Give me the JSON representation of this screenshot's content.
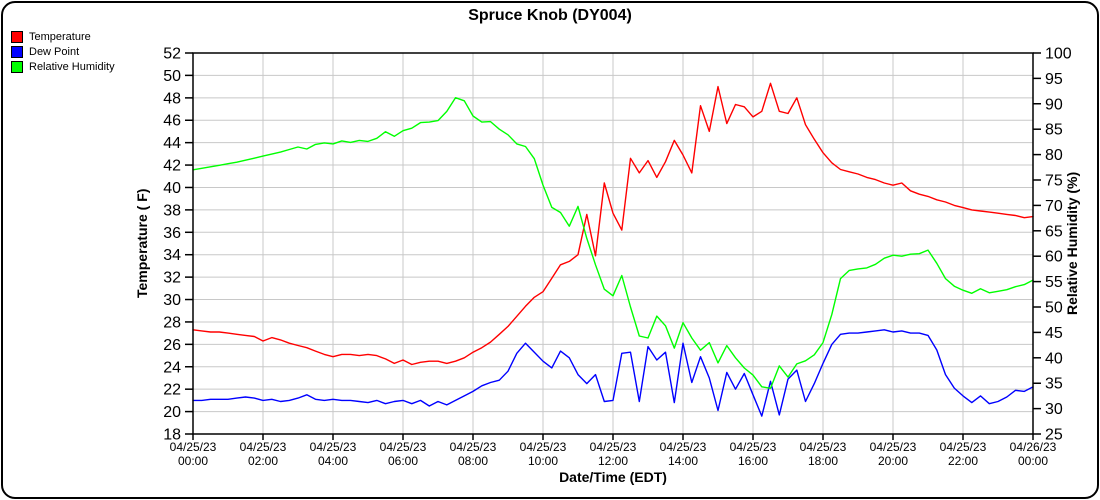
{
  "title": "Spruce Knob (DY004)",
  "legend": [
    {
      "label": "Temperature",
      "color": "#ff0000"
    },
    {
      "label": "Dew Point",
      "color": "#0000ff"
    },
    {
      "label": "Relative Humidity",
      "color": "#00ff00"
    }
  ],
  "chart_data": {
    "type": "line",
    "title": "Spruce Knob (DY004)",
    "x_label": "Date/Time (EDT)",
    "y_left_label": "Temperature ( F)",
    "y_right_label": "Relative Humidity (%)",
    "grid": true,
    "grid_color": "#c8c8c8",
    "axis_color": "#000000",
    "x_range": [
      0,
      24
    ],
    "y_left_range": [
      18,
      52
    ],
    "y_right_range": [
      25,
      100
    ],
    "y_left_ticks": [
      52,
      50,
      48,
      46,
      44,
      42,
      40,
      38,
      36,
      34,
      32,
      30,
      28,
      26,
      24,
      22,
      20,
      18
    ],
    "y_right_ticks": [
      100,
      95,
      90,
      85,
      80,
      75,
      70,
      65,
      60,
      55,
      50,
      45,
      40,
      35,
      30,
      25
    ],
    "x_tick_hours": [
      0,
      2,
      4,
      6,
      8,
      10,
      12,
      14,
      16,
      18,
      20,
      22,
      24
    ],
    "x_tick_labels": [
      {
        "date": "04/25/23",
        "time": "00:00"
      },
      {
        "date": "04/25/23",
        "time": "02:00"
      },
      {
        "date": "04/25/23",
        "time": "04:00"
      },
      {
        "date": "04/25/23",
        "time": "06:00"
      },
      {
        "date": "04/25/23",
        "time": "08:00"
      },
      {
        "date": "04/25/23",
        "time": "10:00"
      },
      {
        "date": "04/25/23",
        "time": "12:00"
      },
      {
        "date": "04/25/23",
        "time": "14:00"
      },
      {
        "date": "04/25/23",
        "time": "16:00"
      },
      {
        "date": "04/25/23",
        "time": "18:00"
      },
      {
        "date": "04/25/23",
        "time": "20:00"
      },
      {
        "date": "04/25/23",
        "time": "22:00"
      },
      {
        "date": "04/26/23",
        "time": "00:00"
      }
    ],
    "series": [
      {
        "name": "Temperature",
        "id": "temperature-line",
        "color": "#ff0000",
        "axis": "left",
        "x_start_hour": 0,
        "x_step_minutes": 15,
        "values": [
          27.3,
          27.2,
          27.1,
          27.1,
          27.0,
          26.9,
          26.8,
          26.7,
          26.3,
          26.6,
          26.4,
          26.1,
          25.9,
          25.7,
          25.4,
          25.1,
          24.9,
          25.1,
          25.1,
          25.0,
          25.1,
          25.0,
          24.7,
          24.3,
          24.6,
          24.2,
          24.4,
          24.5,
          24.5,
          24.3,
          24.5,
          24.8,
          25.3,
          25.7,
          26.2,
          26.9,
          27.6,
          28.5,
          29.4,
          30.2,
          30.7,
          31.9,
          33.1,
          33.4,
          34.0,
          37.6,
          33.9,
          40.4,
          37.7,
          36.2,
          42.6,
          41.3,
          42.4,
          40.9,
          42.3,
          44.2,
          42.9,
          41.3,
          47.3,
          45.0,
          49.0,
          45.7,
          47.4,
          47.2,
          46.3,
          46.8,
          49.3,
          46.8,
          46.6,
          48.0,
          45.6,
          44.3,
          43.1,
          42.2,
          41.6,
          41.4,
          41.2,
          40.9,
          40.7,
          40.4,
          40.2,
          40.4,
          39.7,
          39.4,
          39.2,
          38.9,
          38.7,
          38.4,
          38.2,
          38.0,
          37.9,
          37.8,
          37.7,
          37.6,
          37.5,
          37.3,
          37.4
        ]
      },
      {
        "name": "Dew Point",
        "id": "dew-point-line",
        "color": "#0000ff",
        "axis": "left",
        "x_start_hour": 0,
        "x_step_minutes": 15,
        "values": [
          21.0,
          21.0,
          21.1,
          21.1,
          21.1,
          21.2,
          21.3,
          21.2,
          21.0,
          21.1,
          20.9,
          21.0,
          21.2,
          21.5,
          21.1,
          21.0,
          21.1,
          21.0,
          21.0,
          20.9,
          20.8,
          21.0,
          20.7,
          20.9,
          21.0,
          20.7,
          21.0,
          20.5,
          20.9,
          20.6,
          21.0,
          21.4,
          21.8,
          22.3,
          22.6,
          22.8,
          23.6,
          25.2,
          26.1,
          25.3,
          24.5,
          23.9,
          25.4,
          24.8,
          23.3,
          22.5,
          23.3,
          20.9,
          21.0,
          25.2,
          25.3,
          20.9,
          25.8,
          24.6,
          25.3,
          20.8,
          26.1,
          22.6,
          24.9,
          23.0,
          20.1,
          23.5,
          22.0,
          23.4,
          21.5,
          19.6,
          22.7,
          19.7,
          22.9,
          23.7,
          20.9,
          22.5,
          24.3,
          26.0,
          26.9,
          27.0,
          27.0,
          27.1,
          27.2,
          27.3,
          27.1,
          27.2,
          27.0,
          27.0,
          26.8,
          25.5,
          23.3,
          22.1,
          21.4,
          20.8,
          21.4,
          20.7,
          20.9,
          21.3,
          21.9,
          21.8,
          22.2
        ]
      },
      {
        "name": "Relative Humidity",
        "id": "relative-humidity-line",
        "color": "#00ff00",
        "axis": "right",
        "x_start_hour": 0,
        "x_step_minutes": 15,
        "values": [
          77.0,
          77.3,
          77.6,
          77.9,
          78.2,
          78.5,
          78.9,
          79.3,
          79.7,
          80.1,
          80.5,
          81.0,
          81.5,
          81.1,
          82.0,
          82.3,
          82.1,
          82.7,
          82.4,
          82.8,
          82.6,
          83.2,
          84.5,
          83.6,
          84.7,
          85.2,
          86.3,
          86.4,
          86.7,
          88.5,
          91.2,
          90.6,
          87.6,
          86.4,
          86.5,
          85.0,
          83.9,
          82.1,
          81.6,
          79.2,
          74.0,
          69.6,
          68.6,
          65.9,
          69.8,
          63.5,
          58.3,
          53.5,
          52.2,
          56.2,
          50.0,
          44.3,
          43.9,
          48.2,
          46.3,
          41.9,
          46.9,
          43.9,
          41.5,
          43.0,
          39.0,
          42.4,
          40.0,
          38.0,
          36.6,
          34.3,
          34.0,
          38.4,
          36.2,
          38.8,
          39.4,
          40.6,
          43.0,
          48.5,
          55.6,
          57.2,
          57.5,
          57.7,
          58.4,
          59.6,
          60.2,
          60.0,
          60.4,
          60.5,
          61.2,
          58.6,
          55.6,
          54.1,
          53.3,
          52.7,
          53.6,
          52.8,
          53.1,
          53.4,
          54.0,
          54.4,
          55.3
        ]
      }
    ]
  }
}
